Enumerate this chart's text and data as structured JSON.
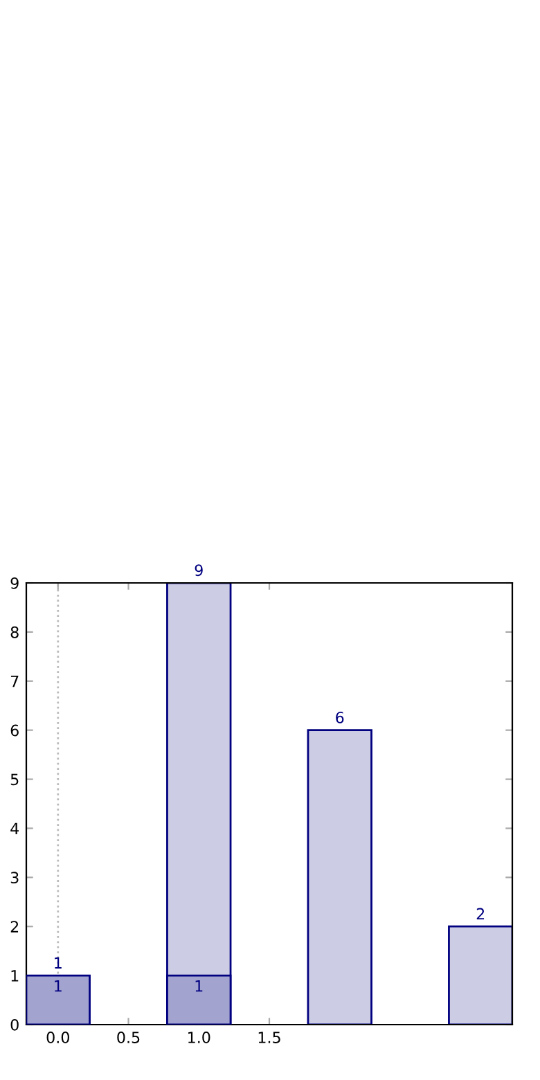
{
  "chart_data": {
    "type": "bar",
    "xlim": [
      -0.225,
      3.225
    ],
    "ylim": [
      0,
      9
    ],
    "xticks": [
      {
        "value": 0,
        "label": "0.0"
      },
      {
        "value": 0.5,
        "label": "0.5"
      },
      {
        "value": 1,
        "label": "1.0"
      },
      {
        "value": 1.5,
        "label": "1.5"
      }
    ],
    "yticks": [
      0,
      1,
      2,
      3,
      4,
      5,
      6,
      7,
      8,
      9
    ],
    "series": [
      {
        "color": "#cccce5",
        "x": [
          1,
          2,
          3
        ],
        "values": [
          9,
          6,
          2
        ]
      },
      {
        "color": "#a3a3d0",
        "x": [
          0,
          1
        ],
        "values": [
          1,
          1
        ]
      }
    ],
    "data_labels": true,
    "grid": false,
    "annotations": [
      {
        "text": "1",
        "x": 0,
        "y": 1
      }
    ],
    "ref_lines": [
      {
        "axis": "x",
        "value": 0,
        "color": "#bbbbbb",
        "line_style": "dotted"
      }
    ]
  }
}
